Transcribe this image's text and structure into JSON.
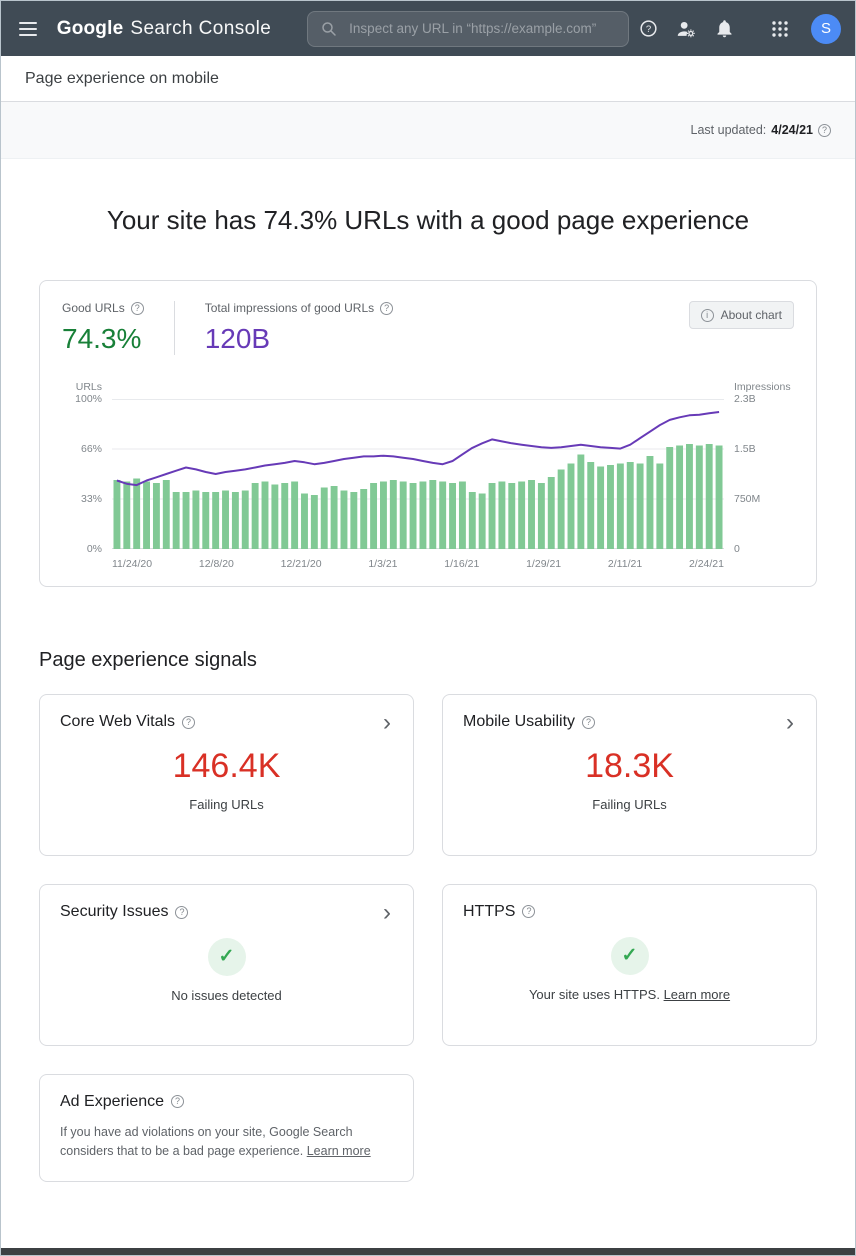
{
  "header": {
    "logo_google": "Google",
    "logo_product": "Search Console",
    "search_placeholder": "Inspect any URL in “https://example.com”",
    "avatar_letter": "S"
  },
  "breadcrumb": "Page experience on mobile",
  "last_updated": {
    "label": "Last updated:",
    "date": "4/24/21"
  },
  "headline": "Your site has 74.3% URLs with a good page experience",
  "summary": {
    "good_urls_label": "Good URLs",
    "good_urls_value": "74.3%",
    "impressions_label": "Total impressions of good URLs",
    "impressions_value": "120B",
    "about_chart_label": "About chart"
  },
  "chart_data": {
    "type": "combo",
    "title": "Good URLs share (bars, left axis) vs impressions of good URLs (line, right axis) over time",
    "x_tick_labels": [
      "11/24/20",
      "12/8/20",
      "12/21/20",
      "1/3/21",
      "1/16/21",
      "1/29/21",
      "2/11/21",
      "2/24/21"
    ],
    "left_axis": {
      "label": "URLs",
      "ticks_bottom_to_top": [
        "0%",
        "33%",
        "66%",
        "100%"
      ],
      "range": [
        0,
        100
      ]
    },
    "right_axis": {
      "label": "Impressions",
      "ticks_bottom_to_top": [
        "0",
        "750M",
        "1.5B",
        "2.3B"
      ],
      "range_billions": [
        0,
        2.3
      ]
    },
    "grid": true,
    "legend": "none",
    "series": [
      {
        "name": "Good URLs",
        "type": "bar",
        "axis": "left",
        "unit": "%",
        "color": "#81c995",
        "values": [
          46,
          45,
          47,
          45,
          44,
          46,
          38,
          38,
          39,
          38,
          38,
          39,
          38,
          39,
          44,
          45,
          43,
          44,
          45,
          37,
          36,
          41,
          42,
          39,
          38,
          40,
          44,
          45,
          46,
          45,
          44,
          45,
          46,
          45,
          44,
          45,
          38,
          37,
          44,
          45,
          44,
          45,
          46,
          44,
          48,
          53,
          57,
          63,
          58,
          55,
          56,
          57,
          58,
          57,
          62,
          57,
          68,
          69,
          70,
          69,
          70,
          69
        ]
      },
      {
        "name": "Impressions",
        "type": "line",
        "axis": "right",
        "unit": "billions",
        "color": "#673ab7",
        "values": [
          1.05,
          1.0,
          0.98,
          1.05,
          1.1,
          1.15,
          1.2,
          1.25,
          1.22,
          1.18,
          1.15,
          1.18,
          1.2,
          1.22,
          1.25,
          1.28,
          1.3,
          1.32,
          1.35,
          1.33,
          1.3,
          1.32,
          1.35,
          1.38,
          1.4,
          1.42,
          1.42,
          1.43,
          1.42,
          1.4,
          1.38,
          1.35,
          1.32,
          1.3,
          1.35,
          1.45,
          1.55,
          1.62,
          1.68,
          1.65,
          1.62,
          1.6,
          1.58,
          1.56,
          1.55,
          1.56,
          1.58,
          1.6,
          1.58,
          1.56,
          1.55,
          1.54,
          1.6,
          1.7,
          1.8,
          1.9,
          1.98,
          2.02,
          2.05,
          2.06,
          2.08,
          2.1
        ]
      }
    ]
  },
  "signals": {
    "heading": "Page experience signals",
    "cards": [
      {
        "title": "Core Web Vitals",
        "value": "146.4K",
        "caption": "Failing URLs"
      },
      {
        "title": "Mobile Usability",
        "value": "18.3K",
        "caption": "Failing URLs"
      },
      {
        "title": "Security Issues",
        "caption": "No issues detected"
      },
      {
        "title": "HTTPS",
        "caption": "Your site uses HTTPS.",
        "link_label": "Learn more"
      },
      {
        "title": "Ad Experience",
        "body": "If you have ad violations on your site, Google Search considers that to be a bad page experience.",
        "link_label": "Learn more"
      }
    ]
  },
  "icons": {
    "question": "?",
    "info": "i",
    "check": "✓",
    "chevron": "›"
  },
  "colors": {
    "header_bg": "#404b55",
    "good_green": "#188038",
    "impressions_purple": "#673ab7",
    "bar_green": "#81c995",
    "line_purple": "#673ab7",
    "failing_red": "#d93025",
    "check_green": "#34a853",
    "check_bg": "#e6f4ea",
    "avatar_blue": "#4c8bf5"
  }
}
